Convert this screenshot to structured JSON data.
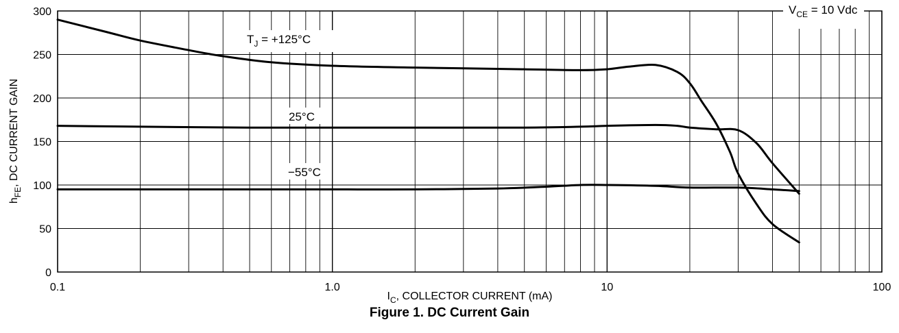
{
  "figure_caption": "Figure 1. DC Current Gain",
  "chart_data": {
    "type": "line",
    "xscale": "log",
    "xlim": [
      0.1,
      100
    ],
    "ylim": [
      0,
      300
    ],
    "grid": true,
    "x_ticks": [
      0.1,
      1.0,
      10,
      100
    ],
    "x_tick_labels": [
      "0.1",
      "1.0",
      "10",
      "100"
    ],
    "y_ticks": [
      0,
      50,
      100,
      150,
      200,
      250,
      300
    ],
    "y_tick_labels": [
      "0",
      "50",
      "100",
      "150",
      "200",
      "250",
      "300"
    ],
    "xlabel": {
      "main": "I",
      "sub": "C",
      "rest": ", COLLECTOR CURRENT (mA)"
    },
    "ylabel": {
      "main": "h",
      "sub": "FE",
      "rest": ", DC CURRENT GAIN"
    },
    "annotations": {
      "condition": {
        "main": "V",
        "sub": "CE",
        "rest": " = 10 Vdc"
      },
      "t125": {
        "main": "T",
        "sub": "J",
        "rest": " = +125°C"
      },
      "t25": "25°C",
      "tm55": "−55°C"
    },
    "series": [
      {
        "points": [
          [
            0.1,
            290
          ],
          [
            0.15,
            276
          ],
          [
            0.2,
            266
          ],
          [
            0.3,
            255
          ],
          [
            0.4,
            248
          ],
          [
            0.6,
            241
          ],
          [
            1,
            237
          ],
          [
            2,
            235
          ],
          [
            5,
            233
          ],
          [
            8,
            232
          ],
          [
            10,
            233
          ],
          [
            12,
            236
          ],
          [
            15,
            238
          ],
          [
            18,
            230
          ],
          [
            20,
            217
          ],
          [
            22,
            197
          ],
          [
            25,
            170
          ],
          [
            28,
            138
          ],
          [
            30,
            113
          ],
          [
            35,
            78
          ],
          [
            40,
            55
          ],
          [
            50,
            34
          ]
        ]
      },
      {
        "points": [
          [
            0.1,
            168
          ],
          [
            0.2,
            167
          ],
          [
            0.5,
            166
          ],
          [
            1,
            166
          ],
          [
            2,
            166
          ],
          [
            5,
            166
          ],
          [
            8,
            167
          ],
          [
            10,
            168
          ],
          [
            15,
            169
          ],
          [
            18,
            168
          ],
          [
            20,
            166
          ],
          [
            25,
            164
          ],
          [
            30,
            163
          ],
          [
            35,
            148
          ],
          [
            40,
            125
          ],
          [
            50,
            90
          ]
        ]
      },
      {
        "points": [
          [
            0.1,
            95
          ],
          [
            0.2,
            95
          ],
          [
            0.5,
            95
          ],
          [
            1,
            95
          ],
          [
            2,
            95
          ],
          [
            4,
            96
          ],
          [
            6,
            98
          ],
          [
            8,
            100
          ],
          [
            10,
            100
          ],
          [
            15,
            99
          ],
          [
            20,
            97
          ],
          [
            30,
            97
          ],
          [
            40,
            95
          ],
          [
            50,
            93
          ]
        ]
      }
    ]
  }
}
